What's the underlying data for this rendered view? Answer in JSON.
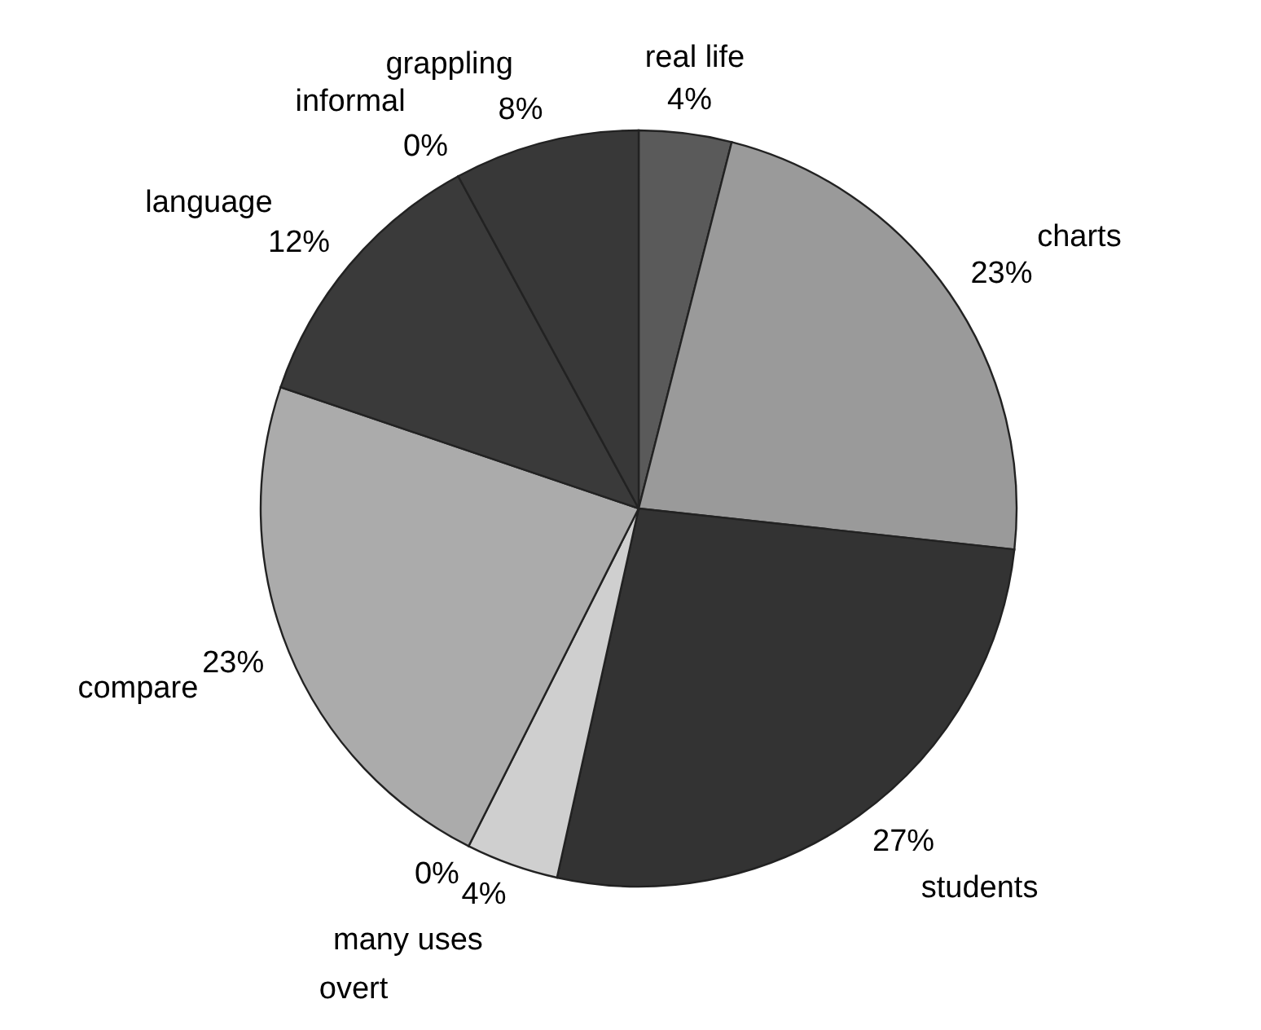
{
  "chart_data": {
    "type": "pie",
    "categories": [
      "real life",
      "charts",
      "students",
      "many uses",
      "overt",
      "compare",
      "language",
      "informal",
      "grappling"
    ],
    "values": [
      4,
      23,
      27,
      4,
      0,
      23,
      12,
      0,
      8
    ],
    "value_labels": [
      "4%",
      "23%",
      "27%",
      "4%",
      "0%",
      "23%",
      "12%",
      "0%",
      "8%"
    ],
    "colors": [
      "#5a5a5a",
      "#9a9a9a",
      "#333333",
      "#cfcfcf",
      null,
      "#ababab",
      "#3a3a3a",
      null,
      "#383838"
    ]
  }
}
